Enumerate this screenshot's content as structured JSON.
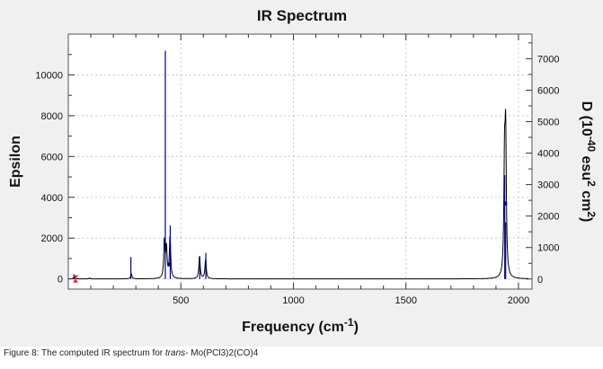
{
  "chart_data": {
    "type": "line",
    "title": "IR Spectrum",
    "xlabel": {
      "main": "Frequency (cm",
      "sup": "-1",
      "close": ")"
    },
    "ylabel_left": "Epsilon",
    "ylabel_right": {
      "p1": "D (10",
      "s1": "-40",
      "p2": " esu",
      "s2": "2",
      "p3": " cm",
      "s3": "2",
      "p4": ")"
    },
    "xlim": [
      0,
      2060
    ],
    "ylim_left": [
      -500,
      12000
    ],
    "ylim_right": [
      -320,
      7780
    ],
    "x_ticks": [
      500,
      1000,
      1500,
      2000
    ],
    "y_ticks_left": [
      0,
      2000,
      4000,
      6000,
      8000,
      10000
    ],
    "y_ticks_right": [
      0,
      1000,
      2000,
      3000,
      4000,
      5000,
      6000,
      7000
    ],
    "grid": true,
    "legend": "none",
    "colors": {
      "spectrum": "#000000",
      "sticks": "#00008b",
      "marker": "#d62020"
    },
    "spectrum_peaks": [
      {
        "x": 25,
        "epsilon": 80
      },
      {
        "x": 95,
        "epsilon": 40
      },
      {
        "x": 280,
        "epsilon": 250
      },
      {
        "x": 427,
        "epsilon": 1800
      },
      {
        "x": 436,
        "epsilon": 1400
      },
      {
        "x": 452,
        "epsilon": 2000
      },
      {
        "x": 583,
        "epsilon": 1100
      },
      {
        "x": 610,
        "epsilon": 950
      },
      {
        "x": 1938,
        "epsilon": 5200
      },
      {
        "x": 1943,
        "epsilon": 6500
      }
    ],
    "sticks": [
      {
        "x": 25,
        "D": 150
      },
      {
        "x": 95,
        "D": 40
      },
      {
        "x": 278,
        "D": 700
      },
      {
        "x": 431,
        "D": 7250
      },
      {
        "x": 453,
        "D": 1700
      },
      {
        "x": 584,
        "D": 700
      },
      {
        "x": 611,
        "D": 830
      },
      {
        "x": 1939,
        "D": 3300
      },
      {
        "x": 1943,
        "D": 1800
      }
    ],
    "markers": [
      {
        "x": 450,
        "D": 470
      },
      {
        "x": 1941,
        "D": 2400
      }
    ]
  },
  "caption": {
    "prefix": "Figure 8: The computed IR spectrum for ",
    "italic": "trans",
    "suffix": "- Mo(PCl3)2(CO)4"
  }
}
